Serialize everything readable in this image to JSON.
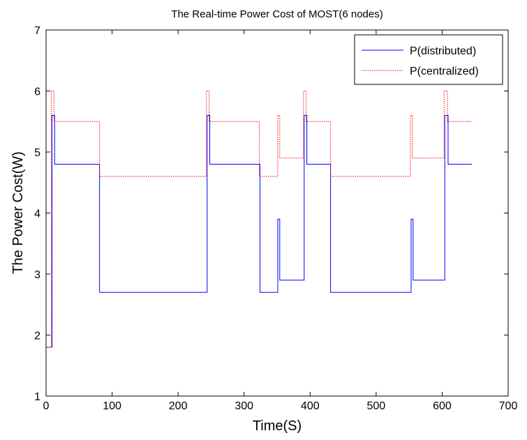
{
  "chart_data": {
    "type": "line",
    "title": "The Real-time Power Cost of MOST(6 nodes)",
    "xlabel": "Time(S)",
    "ylabel": "The Power Cost(W)",
    "xlim": [
      0,
      700
    ],
    "ylim": [
      1,
      7
    ],
    "xticks": [
      0,
      100,
      200,
      300,
      400,
      500,
      600,
      700
    ],
    "yticks": [
      1,
      2,
      3,
      4,
      5,
      6,
      7
    ],
    "grid": false,
    "legend_position": "top-right",
    "line_style": "step",
    "series": [
      {
        "name": "P(distributed)",
        "color": "#0000ff",
        "dash": "solid",
        "x": [
          0,
          9,
          9,
          13,
          13,
          81,
          81,
          244,
          244,
          248,
          248,
          324,
          324,
          351,
          351,
          354,
          354,
          391,
          391,
          395,
          395,
          431,
          431,
          553,
          553,
          556,
          556,
          604,
          604,
          609,
          609,
          645
        ],
        "y": [
          1.8,
          1.8,
          5.6,
          5.6,
          4.8,
          4.8,
          2.7,
          2.7,
          5.6,
          5.6,
          4.8,
          4.8,
          2.7,
          2.7,
          3.9,
          3.9,
          2.9,
          2.9,
          5.6,
          5.6,
          4.8,
          4.8,
          2.7,
          2.7,
          3.9,
          3.9,
          2.9,
          2.9,
          5.6,
          5.6,
          4.8,
          4.8
        ]
      },
      {
        "name": "P(centralized)",
        "color": "#ff0000",
        "dash": "dotted",
        "x": [
          0,
          8,
          8,
          12,
          12,
          81,
          81,
          243,
          243,
          247,
          247,
          323,
          323,
          351,
          351,
          354,
          354,
          390,
          390,
          394,
          394,
          431,
          431,
          552,
          552,
          555,
          555,
          603,
          603,
          608,
          608,
          645
        ],
        "y": [
          1.8,
          1.8,
          6.0,
          6.0,
          5.5,
          5.5,
          4.6,
          4.6,
          6.0,
          6.0,
          5.5,
          5.5,
          4.6,
          4.6,
          5.6,
          5.6,
          4.9,
          4.9,
          6.0,
          6.0,
          5.5,
          5.5,
          4.6,
          4.6,
          5.6,
          5.6,
          4.9,
          4.9,
          6.0,
          6.0,
          5.5,
          5.5
        ]
      }
    ]
  }
}
